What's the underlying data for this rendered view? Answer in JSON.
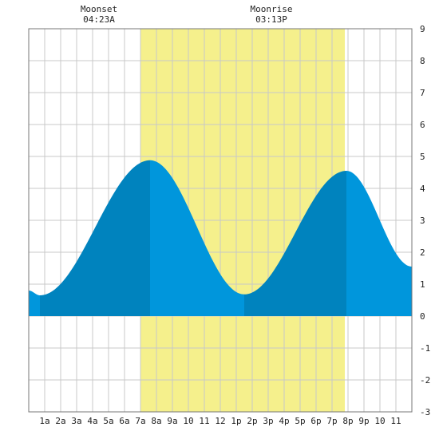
{
  "chart_data": {
    "type": "area",
    "x_unit": "hour",
    "xlim": [
      0,
      24
    ],
    "ylim": [
      -3,
      9
    ],
    "grid": true,
    "x_ticks": [
      {
        "x": 1,
        "label": "1a"
      },
      {
        "x": 2,
        "label": "2a"
      },
      {
        "x": 3,
        "label": "3a"
      },
      {
        "x": 4,
        "label": "4a"
      },
      {
        "x": 5,
        "label": "5a"
      },
      {
        "x": 6,
        "label": "6a"
      },
      {
        "x": 7,
        "label": "7a"
      },
      {
        "x": 8,
        "label": "8a"
      },
      {
        "x": 9,
        "label": "9a"
      },
      {
        "x": 10,
        "label": "10"
      },
      {
        "x": 11,
        "label": "11"
      },
      {
        "x": 12,
        "label": "12"
      },
      {
        "x": 13,
        "label": "1p"
      },
      {
        "x": 14,
        "label": "2p"
      },
      {
        "x": 15,
        "label": "3p"
      },
      {
        "x": 16,
        "label": "4p"
      },
      {
        "x": 17,
        "label": "5p"
      },
      {
        "x": 18,
        "label": "6p"
      },
      {
        "x": 19,
        "label": "7p"
      },
      {
        "x": 20,
        "label": "8p"
      },
      {
        "x": 21,
        "label": "9p"
      },
      {
        "x": 22,
        "label": "10"
      },
      {
        "x": 23,
        "label": "11"
      }
    ],
    "y_ticks": [
      -3,
      -2,
      -1,
      0,
      1,
      2,
      3,
      4,
      5,
      6,
      7,
      8,
      9
    ],
    "daylight": {
      "start": 7.0,
      "end": 19.8
    },
    "tide_extremes": [
      {
        "x": 0.7,
        "y": 0.65,
        "kind": "low"
      },
      {
        "x": 7.6,
        "y": 4.88,
        "kind": "high"
      },
      {
        "x": 13.5,
        "y": 0.68,
        "kind": "low"
      },
      {
        "x": 19.9,
        "y": 4.55,
        "kind": "high"
      }
    ],
    "tide_start": {
      "x": 0,
      "y": 0.8
    },
    "tide_end": {
      "x": 24,
      "y": 1.55
    },
    "rising_segments": [
      [
        0.7,
        7.6
      ],
      [
        13.5,
        19.9
      ]
    ],
    "colors": {
      "rising": "#0083be",
      "falling": "#0096dc",
      "daylight": "#f5f08c",
      "grid": "#c8c8c8",
      "frame": "#777777"
    },
    "moon_events": [
      {
        "name": "Moonset",
        "time": "04:23A",
        "x": 4.4
      },
      {
        "name": "Moonrise",
        "time": "03:13P",
        "x": 15.2
      }
    ]
  }
}
